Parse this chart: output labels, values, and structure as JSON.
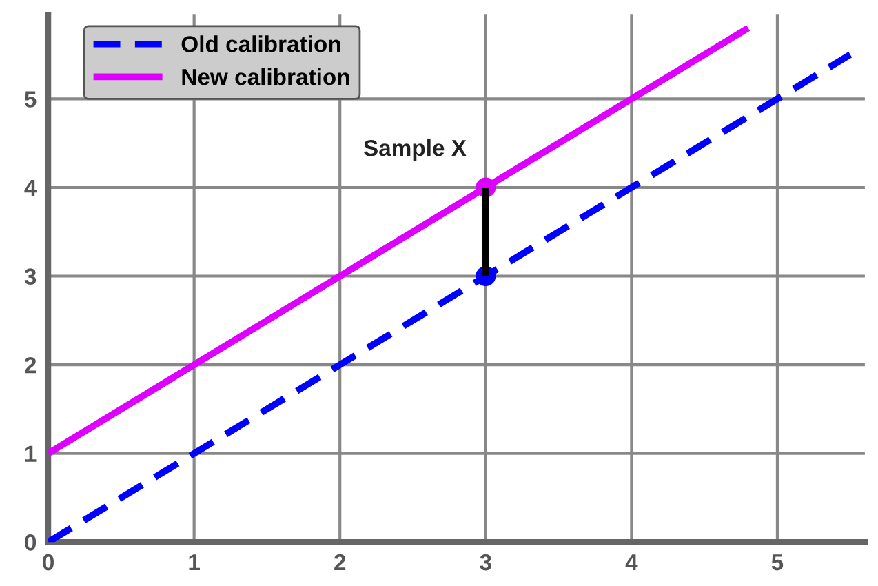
{
  "chart_data": {
    "type": "line",
    "xlim": [
      0,
      5.6
    ],
    "ylim": [
      0,
      5.95
    ],
    "xticks": [
      0,
      1,
      2,
      3,
      4,
      5
    ],
    "yticks": [
      0,
      1,
      2,
      3,
      4,
      5
    ],
    "grid": true,
    "legend": "top left",
    "series": [
      {
        "name": "Old calibration",
        "color": "#0000ff",
        "line_style": "dashed",
        "x": [
          0,
          5.5
        ],
        "values": [
          0,
          5.5
        ]
      },
      {
        "name": "New calibration",
        "color": "#dd00ff",
        "line_style": "solid",
        "x": [
          0,
          4.8
        ],
        "values": [
          1,
          5.8
        ]
      },
      {
        "type": "line",
        "color": "#000000",
        "line_style": "solid",
        "x": [
          3,
          3
        ],
        "values": [
          3,
          4
        ]
      },
      {
        "type": "scatter",
        "color": "#0000ff",
        "marker": "circle",
        "x": [
          3
        ],
        "values": [
          3
        ]
      },
      {
        "type": "scatter",
        "color": "#dd00ff",
        "marker": "circle",
        "x": [
          3
        ],
        "values": [
          4
        ]
      }
    ],
    "annotations": [
      {
        "text": "Sample X",
        "x": 3,
        "y": 4
      }
    ]
  }
}
